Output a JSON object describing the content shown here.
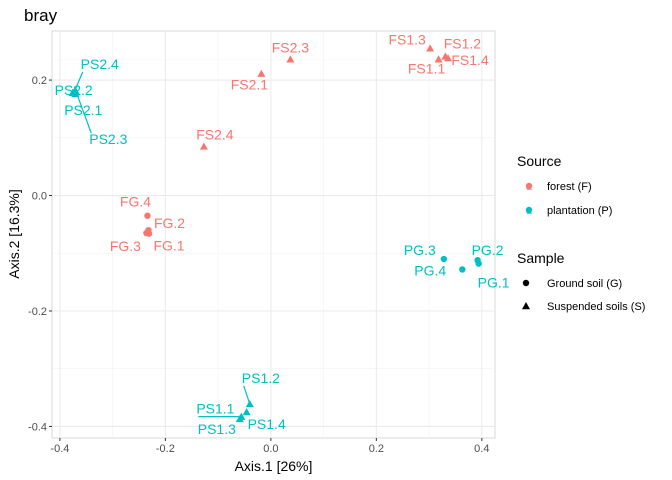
{
  "chart_data": {
    "type": "scatter",
    "title": "bray",
    "xlabel": "Axis.1   [26%]",
    "ylabel": "Axis.2   [16.3%]",
    "xlim": [
      -0.415,
      0.425
    ],
    "ylim": [
      -0.42,
      0.285
    ],
    "x_ticks": [
      -0.4,
      -0.2,
      0.0,
      0.2,
      0.4
    ],
    "x_tick_labels": [
      "-0.4",
      "-0.2",
      "0.0",
      "0.2",
      "0.4"
    ],
    "y_ticks": [
      -0.4,
      -0.2,
      0.0,
      0.2
    ],
    "y_tick_labels": [
      "-0.4",
      "-0.2",
      "0.0",
      "0.2"
    ],
    "grid": true,
    "colors": {
      "forest": "#F8766D",
      "plantation": "#00BFC4"
    },
    "legend": {
      "placement": "right",
      "source": {
        "title": "Source",
        "entries": [
          {
            "label": "forest (F)",
            "key": "forest",
            "glyph": "a"
          },
          {
            "label": "plantation (P)",
            "key": "plantation",
            "glyph": "a"
          }
        ]
      },
      "sample": {
        "title": "Sample",
        "entries": [
          {
            "label": "Ground soil (G)",
            "shape": "circle"
          },
          {
            "label": "Suspended soils (S)",
            "shape": "triangle"
          }
        ]
      }
    },
    "points": [
      {
        "label": "FS2.3",
        "x": 0.037,
        "y": 0.236,
        "source": "forest",
        "sample": "S"
      },
      {
        "label": "FS2.1",
        "x": -0.018,
        "y": 0.211,
        "source": "forest",
        "sample": "S"
      },
      {
        "label": "FS2.4",
        "x": -0.127,
        "y": 0.085,
        "source": "forest",
        "sample": "S"
      },
      {
        "label": "FS1.3",
        "x": 0.302,
        "y": 0.255,
        "source": "forest",
        "sample": "S"
      },
      {
        "label": "FS1.2",
        "x": 0.331,
        "y": 0.241,
        "source": "forest",
        "sample": "S"
      },
      {
        "label": "FS1.1",
        "x": 0.318,
        "y": 0.236,
        "source": "forest",
        "sample": "S"
      },
      {
        "label": "FS1.4",
        "x": 0.336,
        "y": 0.238,
        "source": "forest",
        "sample": "S"
      },
      {
        "label": "FG.4",
        "x": -0.234,
        "y": -0.035,
        "source": "forest",
        "sample": "G"
      },
      {
        "label": "FG.2",
        "x": -0.232,
        "y": -0.06,
        "source": "forest",
        "sample": "G"
      },
      {
        "label": "FG.3",
        "x": -0.236,
        "y": -0.065,
        "source": "forest",
        "sample": "G"
      },
      {
        "label": "FG.1",
        "x": -0.231,
        "y": -0.066,
        "source": "forest",
        "sample": "G"
      },
      {
        "label": "PS2.4",
        "x": -0.372,
        "y": 0.181,
        "source": "plantation",
        "sample": "S"
      },
      {
        "label": "PS2.2",
        "x": -0.376,
        "y": 0.178,
        "source": "plantation",
        "sample": "S"
      },
      {
        "label": "PS2.1",
        "x": -0.371,
        "y": 0.176,
        "source": "plantation",
        "sample": "S"
      },
      {
        "label": "PS2.3",
        "x": -0.369,
        "y": 0.179,
        "source": "plantation",
        "sample": "S"
      },
      {
        "label": "PG.3",
        "x": 0.328,
        "y": -0.11,
        "source": "plantation",
        "sample": "G"
      },
      {
        "label": "PG.2",
        "x": 0.392,
        "y": -0.112,
        "source": "plantation",
        "sample": "G"
      },
      {
        "label": "PG.4",
        "x": 0.363,
        "y": -0.128,
        "source": "plantation",
        "sample": "G"
      },
      {
        "label": "PG.1",
        "x": 0.394,
        "y": -0.118,
        "source": "plantation",
        "sample": "G"
      },
      {
        "label": "PS1.2",
        "x": -0.04,
        "y": -0.361,
        "source": "plantation",
        "sample": "S"
      },
      {
        "label": "PS1.4",
        "x": -0.046,
        "y": -0.375,
        "source": "plantation",
        "sample": "S"
      },
      {
        "label": "PS1.1",
        "x": -0.056,
        "y": -0.383,
        "source": "plantation",
        "sample": "S"
      },
      {
        "label": "PS1.3",
        "x": -0.059,
        "y": -0.387,
        "source": "plantation",
        "sample": "S"
      }
    ]
  }
}
